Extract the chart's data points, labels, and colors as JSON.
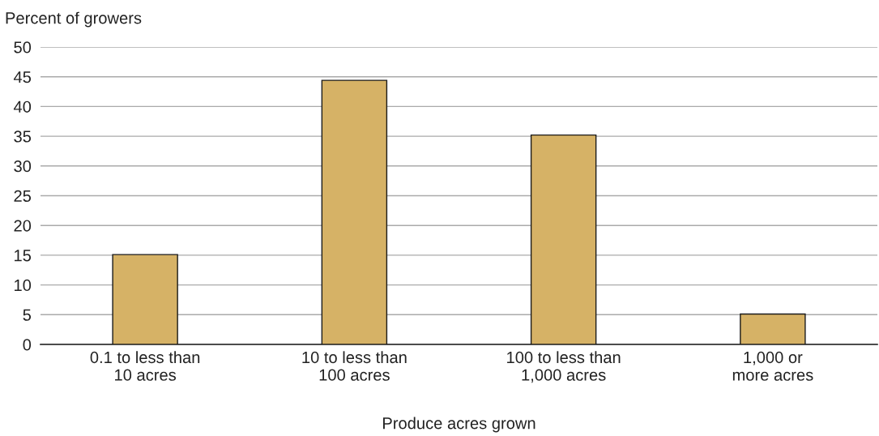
{
  "chart_data": {
    "type": "bar",
    "ylabel": "Percent of growers",
    "xlabel": "Produce acres grown",
    "categories": [
      "0.1 to less than\n10 acres",
      "10 to less than\n100 acres",
      "100 to less than\n1,000 acres",
      "1,000 or\nmore acres"
    ],
    "values": [
      15.1,
      44.4,
      35.2,
      5.1
    ],
    "color": "#d6b266",
    "ylim": [
      0,
      50
    ],
    "yticks": [
      0,
      5,
      10,
      15,
      20,
      25,
      30,
      35,
      40,
      45,
      50
    ],
    "grid": "y",
    "legend": false
  }
}
